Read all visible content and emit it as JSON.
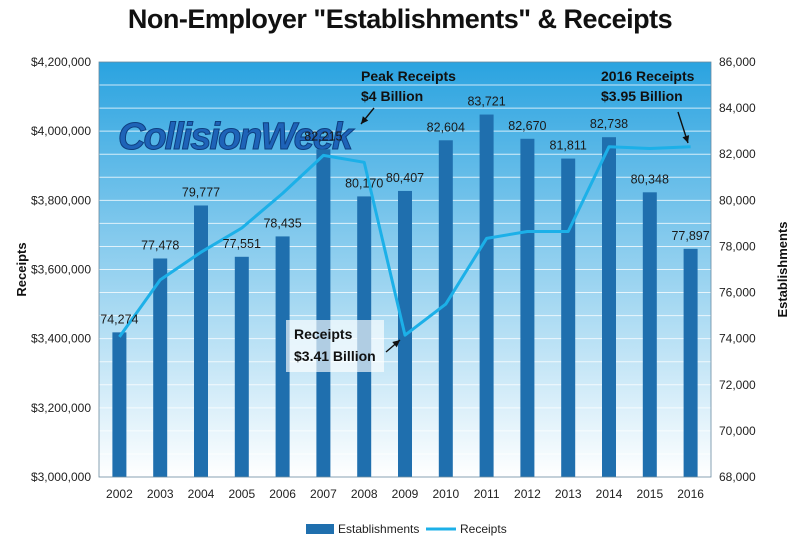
{
  "chart_data": {
    "type": "bar",
    "title": "Non-Employer \"Establishments\" & Receipts",
    "categories": [
      "2002",
      "2003",
      "2004",
      "2005",
      "2006",
      "2007",
      "2008",
      "2009",
      "2010",
      "2011",
      "2012",
      "2013",
      "2014",
      "2015",
      "2016"
    ],
    "series": [
      {
        "name": "Establishments",
        "type": "bar",
        "axis": "right",
        "color": "#1f6fae",
        "values": [
          74274,
          77478,
          79777,
          77551,
          78435,
          82215,
          80170,
          80407,
          82604,
          83721,
          82670,
          81811,
          82738,
          80348,
          77897
        ],
        "labels": [
          "74,274",
          "77,478",
          "79,777",
          "77,551",
          "78,435",
          "82,215",
          "80,170",
          "80,407",
          "82,604",
          "83,721",
          "82,670",
          "81,811",
          "82,738",
          "80,348",
          "77,897"
        ]
      },
      {
        "name": "Receipts",
        "type": "line",
        "axis": "left",
        "color": "#1cb0e8",
        "values": [
          3405000,
          3570000,
          3650000,
          3720000,
          3820000,
          3930000,
          3910000,
          3410000,
          3500000,
          3690000,
          3710000,
          3710000,
          3955000,
          3950000,
          3955000
        ]
      }
    ],
    "ylabel": "Receipts",
    "ylabel_right": "Establishments",
    "ylim": [
      3000000,
      4200000
    ],
    "ylim_right": [
      68000,
      86000
    ],
    "yticks": [
      "$3,000,000",
      "$3,200,000",
      "$3,400,000",
      "$3,600,000",
      "$3,800,000",
      "$4,000,000",
      "$4,200,000"
    ],
    "yticks_right": [
      "68,000",
      "70,000",
      "72,000",
      "74,000",
      "76,000",
      "78,000",
      "80,000",
      "82,000",
      "84,000",
      "86,000"
    ],
    "grid": true,
    "legend": "bottom",
    "annotations": [
      {
        "lines": [
          "Peak Receipts",
          "$4 Billion"
        ]
      },
      {
        "lines": [
          "2016 Receipts",
          "$3.95 Billion"
        ]
      },
      {
        "lines": [
          "Receipts",
          "$3.41 Billion"
        ]
      }
    ]
  },
  "watermark": "CollisionWeek",
  "colors": {
    "plot_top": "#2aa3e0",
    "plot_bottom": "#ffffff",
    "bar": "#1f6fae",
    "line": "#1cb0e8",
    "watermark": "#1e63b8"
  }
}
